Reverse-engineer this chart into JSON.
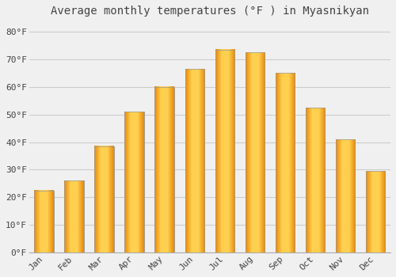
{
  "title": "Average monthly temperatures (°F ) in Myasnikyan",
  "months": [
    "Jan",
    "Feb",
    "Mar",
    "Apr",
    "May",
    "Jun",
    "Jul",
    "Aug",
    "Sep",
    "Oct",
    "Nov",
    "Dec"
  ],
  "values": [
    22.5,
    26.0,
    38.5,
    51.0,
    60.0,
    66.5,
    73.5,
    72.5,
    65.0,
    52.5,
    41.0,
    29.5
  ],
  "bar_color": "#FFA500",
  "bar_edge_color": "#999999",
  "background_color": "#F0F0F0",
  "ylim": [
    0,
    84
  ],
  "yticks": [
    0,
    10,
    20,
    30,
    40,
    50,
    60,
    70,
    80
  ],
  "ytick_labels": [
    "0°F",
    "10°F",
    "20°F",
    "30°F",
    "40°F",
    "50°F",
    "60°F",
    "70°F",
    "80°F"
  ],
  "title_fontsize": 10,
  "tick_fontsize": 8,
  "grid_color": "#CCCCCC",
  "text_color": "#444444"
}
